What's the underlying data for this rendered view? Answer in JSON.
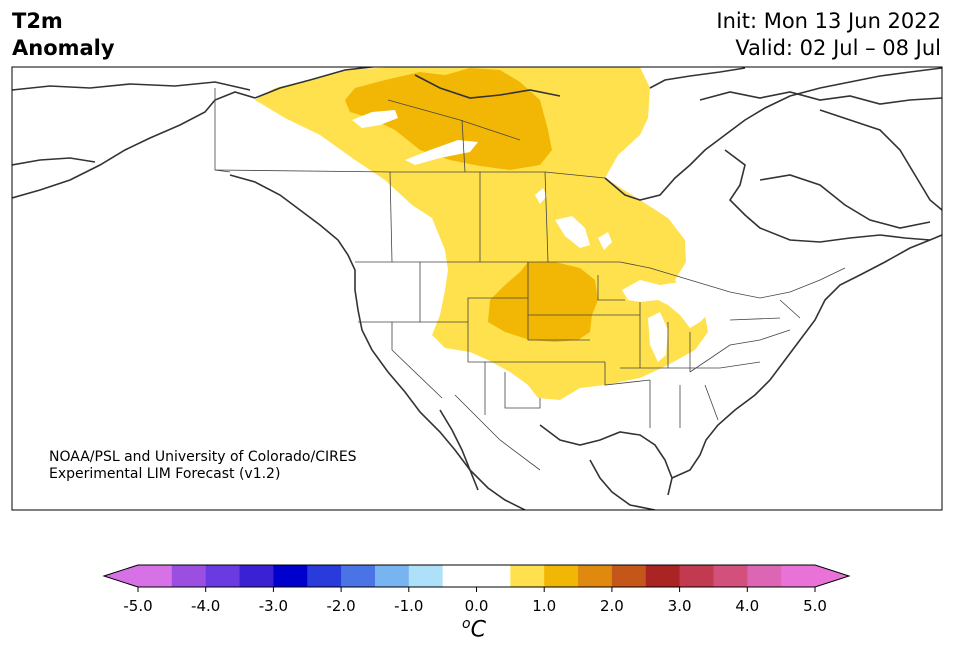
{
  "title": {
    "line1": "T2m",
    "line2": "Anomaly",
    "init": "Init: Mon 13 Jun 2022",
    "valid": "Valid: 02 Jul – 08 Jul"
  },
  "credit": {
    "line1": "NOAA/PSL and University of Colorado/CIRES",
    "line2": "Experimental LIM Forecast (v1.2)"
  },
  "colorbar": {
    "unit_base": "C",
    "unit_sup": "o",
    "tick_labels": [
      "-5.0",
      "-4.0",
      "-3.0",
      "-2.0",
      "-1.0",
      "0.0",
      "1.0",
      "2.0",
      "3.0",
      "4.0",
      "5.0"
    ],
    "bins": [
      -5.0,
      -4.5,
      -4.0,
      -3.5,
      -3.0,
      -2.5,
      -2.0,
      -1.5,
      -1.0,
      -0.5,
      0.5,
      1.0,
      1.5,
      2.0,
      2.5,
      3.0,
      3.5,
      4.0,
      4.5,
      5.0
    ],
    "colors": [
      "#d672e6",
      "#9b4fe0",
      "#6a3be0",
      "#3a22d4",
      "#0000cd",
      "#2a3bdc",
      "#4a74e6",
      "#78b4f0",
      "#aee0fa",
      "#ffffff",
      "#ffe14d",
      "#f2b705",
      "#df8a0e",
      "#c5561a",
      "#ab2424",
      "#c23a50",
      "#d2507c",
      "#dc66b4",
      "#e872d8"
    ],
    "extend_low": "#d672e6",
    "extend_high": "#e872d8"
  },
  "map": {
    "anomaly_levels": [
      {
        "level": "0.5–1.0",
        "color": "#ffe14d"
      },
      {
        "level": "1.0–1.5",
        "color": "#f2b705"
      }
    ],
    "colors": {
      "land_line": "#333333",
      "border_line": "#444444",
      "frame": "#000000",
      "lake": "#ffffff"
    }
  }
}
